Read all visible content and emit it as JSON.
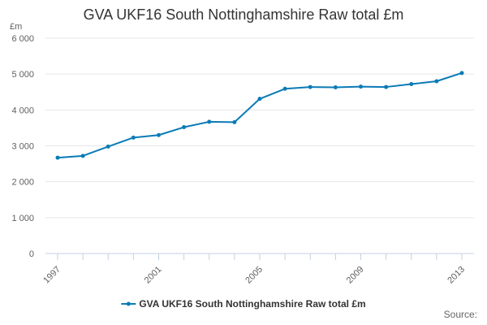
{
  "title": "GVA UKF16 South Nottinghamshire Raw total £m",
  "source_label": "Source:",
  "chart_data": {
    "type": "line",
    "title": "GVA UKF16 South Nottinghamshire Raw total £m",
    "ylabel": "£m",
    "xlabel": "",
    "ylim": [
      0,
      6000
    ],
    "yticks": [
      0,
      1000,
      2000,
      3000,
      4000,
      5000,
      6000
    ],
    "ytick_labels": [
      "0",
      "1 000",
      "2 000",
      "3 000",
      "4 000",
      "5 000",
      "6 000"
    ],
    "xticks_labeled": [
      "1997",
      "2001",
      "2005",
      "2009",
      "2013"
    ],
    "x": [
      1997,
      1998,
      1999,
      2000,
      2001,
      2002,
      2003,
      2004,
      2005,
      2006,
      2007,
      2008,
      2009,
      2010,
      2011,
      2012,
      2013
    ],
    "series": [
      {
        "name": "GVA UKF16 South Nottinghamshire Raw total £m",
        "color": "#0a7bb6",
        "values": [
          2670,
          2720,
          2980,
          3230,
          3300,
          3520,
          3670,
          3660,
          4310,
          4590,
          4640,
          4630,
          4650,
          4640,
          4720,
          4800,
          5030
        ]
      }
    ],
    "grid": "horizontal",
    "legend_position": "bottom-center"
  }
}
